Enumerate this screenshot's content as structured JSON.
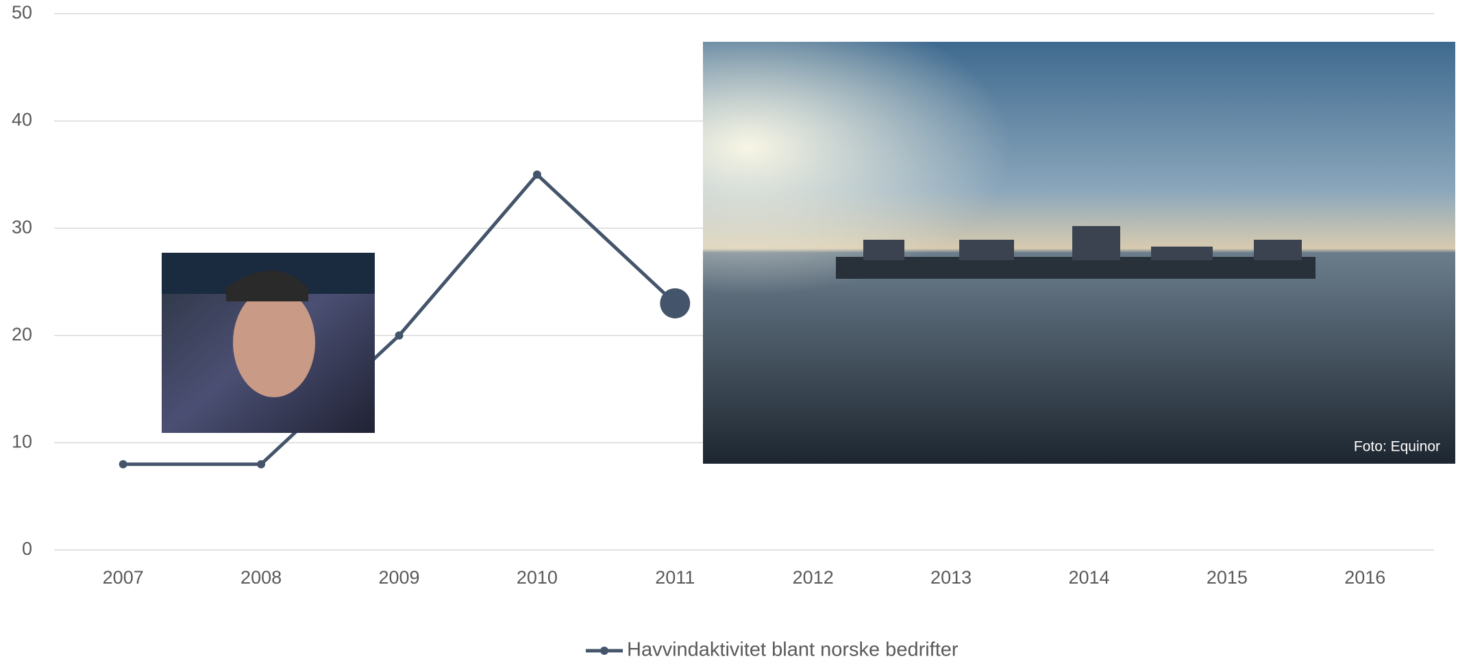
{
  "chart_data": {
    "type": "line",
    "categories": [
      "2007",
      "2008",
      "2009",
      "2010",
      "2011",
      "2012",
      "2013",
      "2014",
      "2015",
      "2016"
    ],
    "series": [
      {
        "name": "Havvindaktivitet blant norske bedrifter",
        "color": "#44546a",
        "values": [
          8,
          8,
          20,
          35,
          23,
          null,
          null,
          null,
          null,
          null
        ],
        "highlight_index": 4
      }
    ],
    "ylim": [
      0,
      50
    ],
    "yticks": [
      0,
      10,
      20,
      30,
      40,
      50
    ],
    "grid": true,
    "legend": "bottom",
    "annotations": [
      "Foto: Equinor"
    ]
  }
}
